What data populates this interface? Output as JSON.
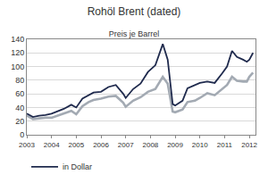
{
  "chart_data": {
    "type": "line",
    "title": "Rohöl Brent (dated)",
    "subtitle": "Preis je Barrel",
    "x": [
      2003.0,
      2003.25,
      2003.5,
      2003.75,
      2004.0,
      2004.25,
      2004.5,
      2004.8,
      2005.0,
      2005.25,
      2005.5,
      2005.7,
      2006.0,
      2006.3,
      2006.6,
      2006.9,
      2007.0,
      2007.3,
      2007.6,
      2007.9,
      2008.2,
      2008.5,
      2008.7,
      2008.9,
      2009.0,
      2009.3,
      2009.5,
      2009.8,
      2010.0,
      2010.3,
      2010.6,
      2010.9,
      2011.1,
      2011.3,
      2011.5,
      2011.75,
      2011.9,
      2012.0,
      2012.15
    ],
    "series": [
      {
        "name": "in Dollar",
        "color": "#1f2a4d",
        "values": [
          31,
          26,
          28,
          29,
          31,
          34,
          38,
          44,
          40,
          53,
          58,
          62,
          63,
          70,
          73,
          60,
          54,
          67,
          75,
          92,
          102,
          133,
          110,
          45,
          43,
          50,
          68,
          73,
          76,
          78,
          76,
          90,
          100,
          123,
          114,
          110,
          107,
          110,
          120
        ]
      },
      {
        "color": "#a3aab3",
        "values": [
          28,
          23,
          24,
          25,
          25,
          28,
          31,
          35,
          30,
          42,
          48,
          51,
          53,
          56,
          57,
          47,
          41,
          50,
          55,
          63,
          67,
          85,
          75,
          34,
          33,
          37,
          48,
          50,
          54,
          61,
          58,
          67,
          73,
          85,
          79,
          78,
          78,
          85,
          91
        ]
      }
    ],
    "xlim": [
      2003,
      2012.25
    ],
    "xticks": [
      2003,
      2004,
      2005,
      2006,
      2007,
      2008,
      2009,
      2010,
      2011,
      2012
    ],
    "ylim": [
      0,
      140
    ],
    "yticks": [
      0,
      20,
      40,
      60,
      80,
      100,
      120,
      140
    ],
    "grid": true,
    "legend": "bottom"
  }
}
